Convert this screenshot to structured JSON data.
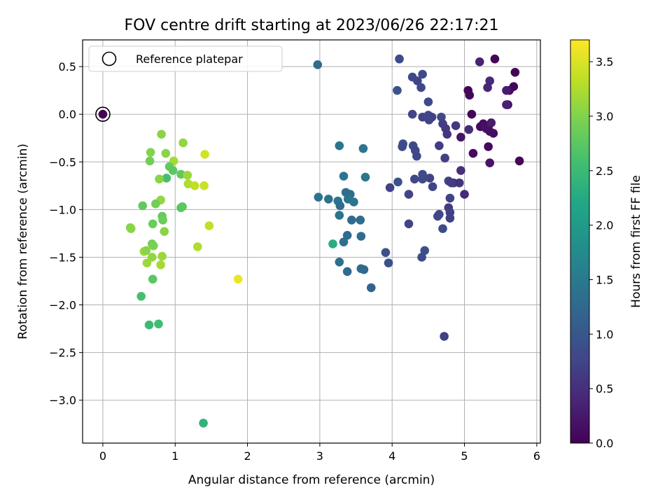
{
  "chart_data": {
    "type": "scatter",
    "title": "FOV centre drift starting at 2023/06/26 22:17:21",
    "xlabel": "Angular distance from reference (arcmin)",
    "ylabel": "Rotation from reference (arcmin)",
    "xlim": [
      -0.28,
      6.05
    ],
    "ylim": [
      -3.45,
      0.78
    ],
    "xticks": [
      0,
      1,
      2,
      3,
      4,
      5,
      6
    ],
    "yticks": [
      0.5,
      0.0,
      -0.5,
      -1.0,
      -1.5,
      -2.0,
      -2.5,
      -3.0
    ],
    "xtick_labels": [
      "0",
      "1",
      "2",
      "3",
      "4",
      "5",
      "6"
    ],
    "ytick_labels": [
      "0.5",
      "0.0",
      "−0.5",
      "−1.0",
      "−1.5",
      "−2.0",
      "−2.5",
      "−3.0"
    ],
    "grid": true,
    "legend_position": "top-left",
    "legend": [
      {
        "label": "Reference platepar",
        "marker": "open-circle"
      }
    ],
    "reference_point": {
      "x": 0,
      "y": 0
    },
    "colorbar": {
      "label": "Hours from first FF file",
      "colormap": "viridis",
      "range": [
        0.0,
        3.7
      ],
      "ticks": [
        0.0,
        0.5,
        1.0,
        1.5,
        2.0,
        2.5,
        3.0,
        3.5
      ],
      "tick_labels": [
        "0.0",
        "0.5",
        "1.0",
        "1.5",
        "2.0",
        "2.5",
        "3.0",
        "3.5"
      ]
    },
    "points": [
      {
        "x": 0.0,
        "y": 0.0,
        "c": 0.0
      },
      {
        "x": 5.42,
        "y": 0.58,
        "c": 0.05
      },
      {
        "x": 5.7,
        "y": 0.44,
        "c": 0.02
      },
      {
        "x": 5.05,
        "y": 0.25,
        "c": 0.05
      },
      {
        "x": 5.07,
        "y": 0.2,
        "c": 0.06
      },
      {
        "x": 5.68,
        "y": 0.29,
        "c": 0.04
      },
      {
        "x": 5.62,
        "y": 0.25,
        "c": 0.07
      },
      {
        "x": 5.6,
        "y": 0.1,
        "c": 0.08
      },
      {
        "x": 5.1,
        "y": 0.0,
        "c": 0.05
      },
      {
        "x": 5.22,
        "y": -0.13,
        "c": 0.1
      },
      {
        "x": 5.26,
        "y": -0.1,
        "c": 0.12
      },
      {
        "x": 5.3,
        "y": -0.15,
        "c": 0.2
      },
      {
        "x": 5.33,
        "y": -0.13,
        "c": 0.15
      },
      {
        "x": 5.35,
        "y": -0.18,
        "c": 0.16
      },
      {
        "x": 5.4,
        "y": -0.2,
        "c": 0.14
      },
      {
        "x": 5.33,
        "y": -0.34,
        "c": 0.1
      },
      {
        "x": 5.12,
        "y": -0.41,
        "c": 0.1
      },
      {
        "x": 5.35,
        "y": -0.51,
        "c": 0.2
      },
      {
        "x": 5.76,
        "y": -0.49,
        "c": 0.03
      },
      {
        "x": 4.95,
        "y": -0.24,
        "c": 0.2
      },
      {
        "x": 5.21,
        "y": 0.55,
        "c": 0.35
      },
      {
        "x": 5.35,
        "y": 0.35,
        "c": 0.45
      },
      {
        "x": 5.32,
        "y": 0.28,
        "c": 0.4
      },
      {
        "x": 5.58,
        "y": 0.25,
        "c": 0.3
      },
      {
        "x": 5.58,
        "y": 0.1,
        "c": 0.35
      },
      {
        "x": 5.37,
        "y": -0.09,
        "c": 0.3
      },
      {
        "x": 5.06,
        "y": -0.16,
        "c": 0.45
      },
      {
        "x": 4.88,
        "y": -0.12,
        "c": 0.6
      },
      {
        "x": 4.95,
        "y": -0.59,
        "c": 0.5
      },
      {
        "x": 4.93,
        "y": -0.72,
        "c": 0.55
      },
      {
        "x": 4.85,
        "y": -0.72,
        "c": 0.5
      },
      {
        "x": 5.0,
        "y": -0.84,
        "c": 0.45
      },
      {
        "x": 4.1,
        "y": 0.58,
        "c": 0.85
      },
      {
        "x": 4.28,
        "y": 0.39,
        "c": 0.8
      },
      {
        "x": 4.35,
        "y": 0.35,
        "c": 0.75
      },
      {
        "x": 4.42,
        "y": 0.42,
        "c": 0.85
      },
      {
        "x": 4.4,
        "y": 0.28,
        "c": 0.8
      },
      {
        "x": 4.07,
        "y": 0.25,
        "c": 0.95
      },
      {
        "x": 4.5,
        "y": 0.13,
        "c": 0.85
      },
      {
        "x": 4.28,
        "y": 0.0,
        "c": 0.75
      },
      {
        "x": 4.42,
        "y": -0.03,
        "c": 0.7
      },
      {
        "x": 4.5,
        "y": -0.01,
        "c": 0.8
      },
      {
        "x": 4.55,
        "y": -0.03,
        "c": 0.7
      },
      {
        "x": 4.51,
        "y": -0.06,
        "c": 0.75
      },
      {
        "x": 4.68,
        "y": -0.03,
        "c": 0.8
      },
      {
        "x": 4.7,
        "y": -0.1,
        "c": 0.65
      },
      {
        "x": 4.74,
        "y": -0.15,
        "c": 0.6
      },
      {
        "x": 4.76,
        "y": -0.21,
        "c": 0.55
      },
      {
        "x": 4.65,
        "y": -0.33,
        "c": 0.65
      },
      {
        "x": 4.15,
        "y": -0.31,
        "c": 0.9
      },
      {
        "x": 4.14,
        "y": -0.34,
        "c": 0.85
      },
      {
        "x": 4.29,
        "y": -0.33,
        "c": 0.85
      },
      {
        "x": 4.32,
        "y": -0.38,
        "c": 0.8
      },
      {
        "x": 4.34,
        "y": -0.44,
        "c": 0.8
      },
      {
        "x": 4.73,
        "y": -0.46,
        "c": 0.7
      },
      {
        "x": 4.42,
        "y": -0.63,
        "c": 0.85
      },
      {
        "x": 4.31,
        "y": -0.68,
        "c": 0.8
      },
      {
        "x": 4.42,
        "y": -0.68,
        "c": 0.85
      },
      {
        "x": 4.52,
        "y": -0.67,
        "c": 0.75
      },
      {
        "x": 4.56,
        "y": -0.76,
        "c": 0.75
      },
      {
        "x": 4.78,
        "y": -0.7,
        "c": 0.7
      },
      {
        "x": 4.82,
        "y": -0.72,
        "c": 0.65
      },
      {
        "x": 4.08,
        "y": -0.71,
        "c": 0.95
      },
      {
        "x": 3.97,
        "y": -0.77,
        "c": 0.7
      },
      {
        "x": 4.23,
        "y": -0.84,
        "c": 0.75
      },
      {
        "x": 4.8,
        "y": -0.88,
        "c": 0.7
      },
      {
        "x": 4.78,
        "y": -0.98,
        "c": 0.65
      },
      {
        "x": 4.8,
        "y": -1.03,
        "c": 0.7
      },
      {
        "x": 4.8,
        "y": -1.09,
        "c": 0.7
      },
      {
        "x": 4.65,
        "y": -1.05,
        "c": 0.8
      },
      {
        "x": 4.63,
        "y": -1.07,
        "c": 0.8
      },
      {
        "x": 4.23,
        "y": -1.15,
        "c": 0.75
      },
      {
        "x": 4.7,
        "y": -1.2,
        "c": 0.85
      },
      {
        "x": 4.45,
        "y": -1.43,
        "c": 0.9
      },
      {
        "x": 4.41,
        "y": -1.5,
        "c": 0.85
      },
      {
        "x": 3.91,
        "y": -1.45,
        "c": 0.9
      },
      {
        "x": 3.95,
        "y": -1.56,
        "c": 0.9
      },
      {
        "x": 4.72,
        "y": -2.33,
        "c": 0.7
      },
      {
        "x": 2.97,
        "y": 0.52,
        "c": 1.3
      },
      {
        "x": 3.27,
        "y": -0.33,
        "c": 1.45
      },
      {
        "x": 3.6,
        "y": -0.36,
        "c": 1.45
      },
      {
        "x": 3.33,
        "y": -0.65,
        "c": 1.45
      },
      {
        "x": 3.63,
        "y": -0.66,
        "c": 1.45
      },
      {
        "x": 3.36,
        "y": -0.82,
        "c": 1.35
      },
      {
        "x": 3.42,
        "y": -0.84,
        "c": 1.3
      },
      {
        "x": 2.98,
        "y": -0.87,
        "c": 1.4
      },
      {
        "x": 3.12,
        "y": -0.89,
        "c": 1.4
      },
      {
        "x": 3.25,
        "y": -0.91,
        "c": 1.45
      },
      {
        "x": 3.39,
        "y": -0.89,
        "c": 1.4
      },
      {
        "x": 3.47,
        "y": -0.92,
        "c": 1.4
      },
      {
        "x": 3.28,
        "y": -0.96,
        "c": 1.3
      },
      {
        "x": 3.27,
        "y": -1.06,
        "c": 1.4
      },
      {
        "x": 3.44,
        "y": -1.11,
        "c": 1.3
      },
      {
        "x": 3.56,
        "y": -1.11,
        "c": 1.3
      },
      {
        "x": 3.38,
        "y": -1.27,
        "c": 1.3
      },
      {
        "x": 3.57,
        "y": -1.28,
        "c": 1.3
      },
      {
        "x": 3.33,
        "y": -1.34,
        "c": 1.35
      },
      {
        "x": 3.27,
        "y": -1.55,
        "c": 1.35
      },
      {
        "x": 3.57,
        "y": -1.62,
        "c": 1.3
      },
      {
        "x": 3.61,
        "y": -1.63,
        "c": 1.25
      },
      {
        "x": 3.38,
        "y": -1.65,
        "c": 1.3
      },
      {
        "x": 3.71,
        "y": -1.82,
        "c": 1.15
      },
      {
        "x": 3.18,
        "y": -1.36,
        "c": 2.3
      },
      {
        "x": 0.81,
        "y": -0.21,
        "c": 3.05
      },
      {
        "x": 1.11,
        "y": -0.3,
        "c": 3.1
      },
      {
        "x": 0.66,
        "y": -0.4,
        "c": 3.0
      },
      {
        "x": 0.87,
        "y": -0.41,
        "c": 3.05
      },
      {
        "x": 1.41,
        "y": -0.42,
        "c": 3.45
      },
      {
        "x": 0.65,
        "y": -0.49,
        "c": 2.9
      },
      {
        "x": 0.98,
        "y": -0.49,
        "c": 3.2
      },
      {
        "x": 0.92,
        "y": -0.55,
        "c": 2.8
      },
      {
        "x": 0.97,
        "y": -0.59,
        "c": 2.75
      },
      {
        "x": 1.08,
        "y": -0.63,
        "c": 2.8
      },
      {
        "x": 1.17,
        "y": -0.64,
        "c": 3.15
      },
      {
        "x": 0.88,
        "y": -0.67,
        "c": 2.6
      },
      {
        "x": 0.78,
        "y": -0.68,
        "c": 3.05
      },
      {
        "x": 1.18,
        "y": -0.73,
        "c": 3.25
      },
      {
        "x": 1.27,
        "y": -0.75,
        "c": 3.35
      },
      {
        "x": 1.4,
        "y": -0.75,
        "c": 3.4
      },
      {
        "x": 0.8,
        "y": -0.9,
        "c": 3.1
      },
      {
        "x": 0.73,
        "y": -0.94,
        "c": 2.9
      },
      {
        "x": 0.55,
        "y": -0.96,
        "c": 2.8
      },
      {
        "x": 1.08,
        "y": -0.98,
        "c": 2.7
      },
      {
        "x": 1.1,
        "y": -0.97,
        "c": 2.75
      },
      {
        "x": 0.82,
        "y": -1.07,
        "c": 2.8
      },
      {
        "x": 0.83,
        "y": -1.11,
        "c": 2.85
      },
      {
        "x": 0.69,
        "y": -1.15,
        "c": 2.85
      },
      {
        "x": 1.47,
        "y": -1.17,
        "c": 3.35
      },
      {
        "x": 0.38,
        "y": -1.19,
        "c": 3.0
      },
      {
        "x": 0.39,
        "y": -1.2,
        "c": 3.05
      },
      {
        "x": 0.85,
        "y": -1.23,
        "c": 3.05
      },
      {
        "x": 0.68,
        "y": -1.36,
        "c": 2.9
      },
      {
        "x": 0.7,
        "y": -1.38,
        "c": 2.95
      },
      {
        "x": 1.31,
        "y": -1.39,
        "c": 3.25
      },
      {
        "x": 0.57,
        "y": -1.44,
        "c": 3.15
      },
      {
        "x": 0.6,
        "y": -1.43,
        "c": 3.05
      },
      {
        "x": 0.82,
        "y": -1.49,
        "c": 3.15
      },
      {
        "x": 0.68,
        "y": -1.5,
        "c": 3.1
      },
      {
        "x": 0.61,
        "y": -1.56,
        "c": 3.15
      },
      {
        "x": 0.8,
        "y": -1.58,
        "c": 3.2
      },
      {
        "x": 1.87,
        "y": -1.73,
        "c": 3.6
      },
      {
        "x": 0.69,
        "y": -1.73,
        "c": 2.75
      },
      {
        "x": 0.53,
        "y": -1.91,
        "c": 2.6
      },
      {
        "x": 0.64,
        "y": -2.21,
        "c": 2.5
      },
      {
        "x": 0.77,
        "y": -2.2,
        "c": 2.55
      },
      {
        "x": 1.39,
        "y": -3.24,
        "c": 2.4
      }
    ]
  }
}
